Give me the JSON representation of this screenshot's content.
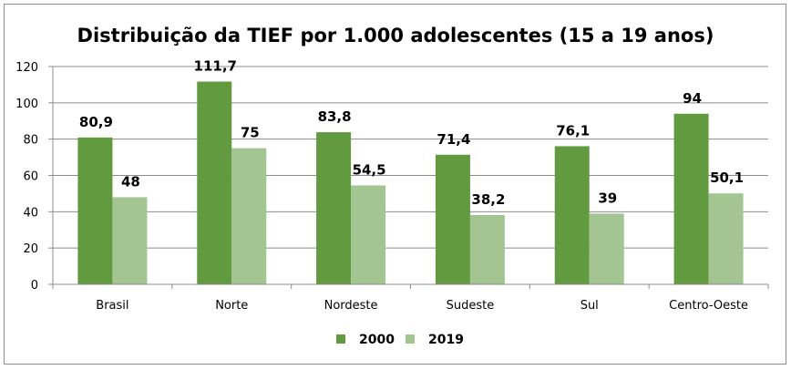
{
  "chart_data": {
    "type": "bar",
    "title": "Distribuição da TIEF por 1.000 adolescentes (15 a 19 anos)",
    "xlabel": "",
    "ylabel": "",
    "ylim": [
      0,
      120
    ],
    "yticks": [
      0,
      20,
      40,
      60,
      80,
      100,
      120
    ],
    "ytick_labels": [
      "0",
      "20",
      "40",
      "60",
      "80",
      "100",
      "120"
    ],
    "grid": true,
    "legend_position": "bottom",
    "categories": [
      "Brasil",
      "Norte",
      "Nordeste",
      "Sudeste",
      "Sul",
      "Centro-Oeste"
    ],
    "series": [
      {
        "name": "2000",
        "color": "#629a3f",
        "values": [
          80.9,
          111.7,
          83.8,
          71.4,
          76.1,
          94
        ],
        "labels": [
          "80,9",
          "111,7",
          "83,8",
          "71,4",
          "76,1",
          "94"
        ]
      },
      {
        "name": "2019",
        "color": "#a3c592",
        "values": [
          48,
          75,
          54.5,
          38.2,
          39,
          50.1
        ],
        "labels": [
          "48",
          "75",
          "54,5",
          "38,2",
          "39",
          "50,1"
        ]
      }
    ]
  }
}
